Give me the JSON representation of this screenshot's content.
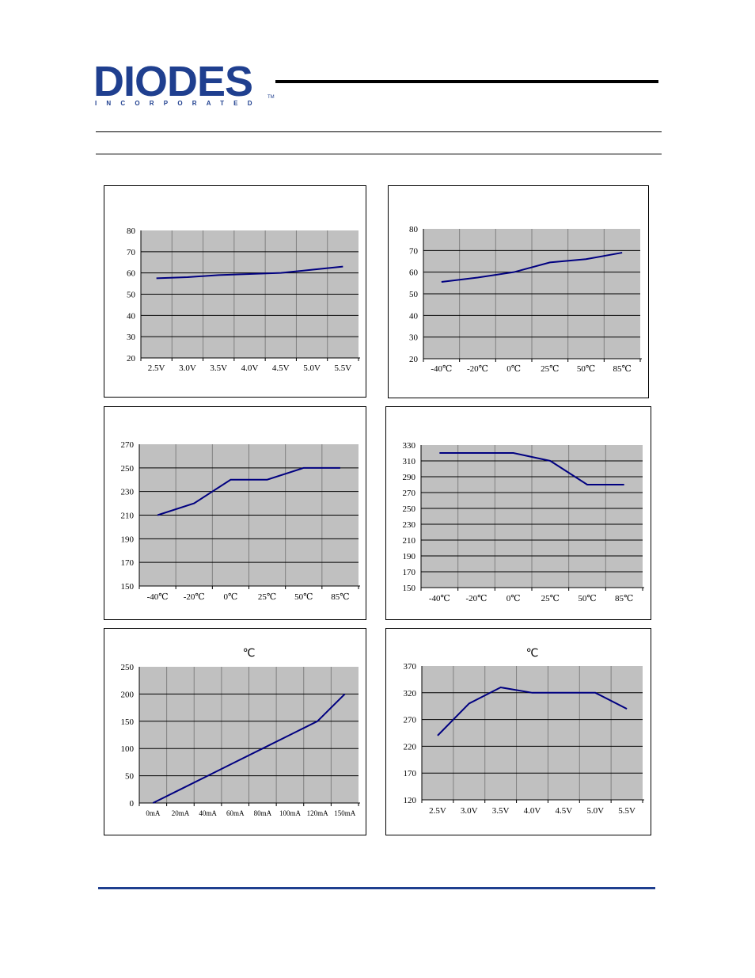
{
  "logo": {
    "word": "DIODES",
    "sub": "INCORPORATED",
    "tm": "TM"
  },
  "chart_data": [
    {
      "type": "line",
      "title": "",
      "categories": [
        "2.5V",
        "3.0V",
        "3.5V",
        "4.0V",
        "4.5V",
        "5.0V",
        "5.5V"
      ],
      "series": [
        {
          "values": [
            57.5,
            58,
            59,
            59.5,
            60,
            61.5,
            63
          ]
        }
      ],
      "yticks": [
        20,
        30,
        40,
        50,
        60,
        70,
        80
      ],
      "ylim": [
        20,
        80
      ],
      "grid": true
    },
    {
      "type": "line",
      "title": "",
      "categories": [
        "-40℃",
        "-20℃",
        "0℃",
        "25℃",
        "50℃",
        "85℃"
      ],
      "series": [
        {
          "values": [
            55.5,
            57.5,
            60,
            64.5,
            66,
            69
          ]
        }
      ],
      "yticks": [
        20,
        30,
        40,
        50,
        60,
        70,
        80
      ],
      "ylim": [
        20,
        80
      ],
      "grid": true
    },
    {
      "type": "line",
      "title": "",
      "categories": [
        "-40℃",
        "-20℃",
        "0℃",
        "25℃",
        "50℃",
        "85℃"
      ],
      "series": [
        {
          "values": [
            210,
            220,
            240,
            240,
            250,
            250
          ]
        }
      ],
      "yticks": [
        150,
        170,
        190,
        210,
        230,
        250,
        270
      ],
      "ylim": [
        150,
        270
      ],
      "grid": true
    },
    {
      "type": "line",
      "title": "",
      "categories": [
        "-40℃",
        "-20℃",
        "0℃",
        "25℃",
        "50℃",
        "85℃"
      ],
      "series": [
        {
          "values": [
            320,
            320,
            320,
            310,
            280,
            280
          ]
        }
      ],
      "yticks": [
        150,
        170,
        190,
        210,
        230,
        250,
        270,
        290,
        310,
        330
      ],
      "ylim": [
        150,
        330
      ],
      "grid": true
    },
    {
      "type": "line",
      "title": "℃",
      "categories": [
        "0mA",
        "20mA",
        "40mA",
        "60mA",
        "80mA",
        "100mA",
        "120mA",
        "150mA"
      ],
      "series": [
        {
          "values": [
            0,
            25,
            50,
            75,
            100,
            125,
            150,
            200
          ]
        }
      ],
      "yticks": [
        0,
        50,
        100,
        150,
        200,
        250
      ],
      "ylim": [
        0,
        250
      ],
      "grid": true
    },
    {
      "type": "line",
      "title": "℃",
      "categories": [
        "2.5V",
        "3.0V",
        "3.5V",
        "4.0V",
        "4.5V",
        "5.0V",
        "5.5V"
      ],
      "series": [
        {
          "values": [
            240,
            300,
            330,
            320,
            320,
            320,
            290
          ]
        }
      ],
      "yticks": [
        120,
        170,
        220,
        270,
        320,
        370
      ],
      "ylim": [
        120,
        370
      ],
      "grid": true
    }
  ],
  "colors": {
    "line": "#000080",
    "plot_bg": "#c0c0c0",
    "brand": "#1f3f8f"
  }
}
